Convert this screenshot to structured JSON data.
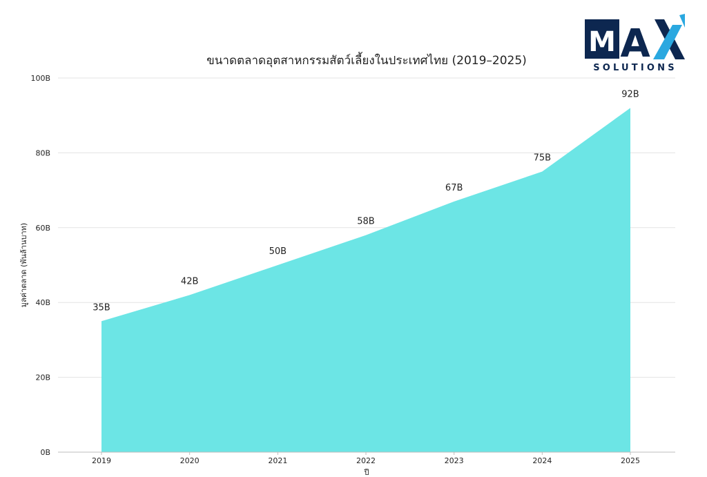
{
  "logo": {
    "word": "MAX",
    "tagline": "SOLUTIONS",
    "navy": "#0d2750",
    "accent": "#2aa8e0"
  },
  "chart_data": {
    "type": "area",
    "title": "ขนาดตลาดอุตสาหกรรมสัตว์เลี้ยงในประเทศไทย (2019–2025)",
    "xlabel": "ปี",
    "ylabel": "มูลค่าตลาด (พันล้านบาท)",
    "categories": [
      "2019",
      "2020",
      "2021",
      "2022",
      "2023",
      "2024",
      "2025"
    ],
    "values": [
      35,
      42,
      50,
      58,
      67,
      75,
      92
    ],
    "data_labels": [
      "35B",
      "42B",
      "50B",
      "58B",
      "67B",
      "75B",
      "92B"
    ],
    "ylim": [
      0,
      100
    ],
    "yticks": [
      0,
      20,
      40,
      60,
      80,
      100
    ],
    "ytick_labels": [
      "0B",
      "20B",
      "40B",
      "60B",
      "80B",
      "100B"
    ],
    "grid": true,
    "fill_color": "#6ce5e5"
  }
}
